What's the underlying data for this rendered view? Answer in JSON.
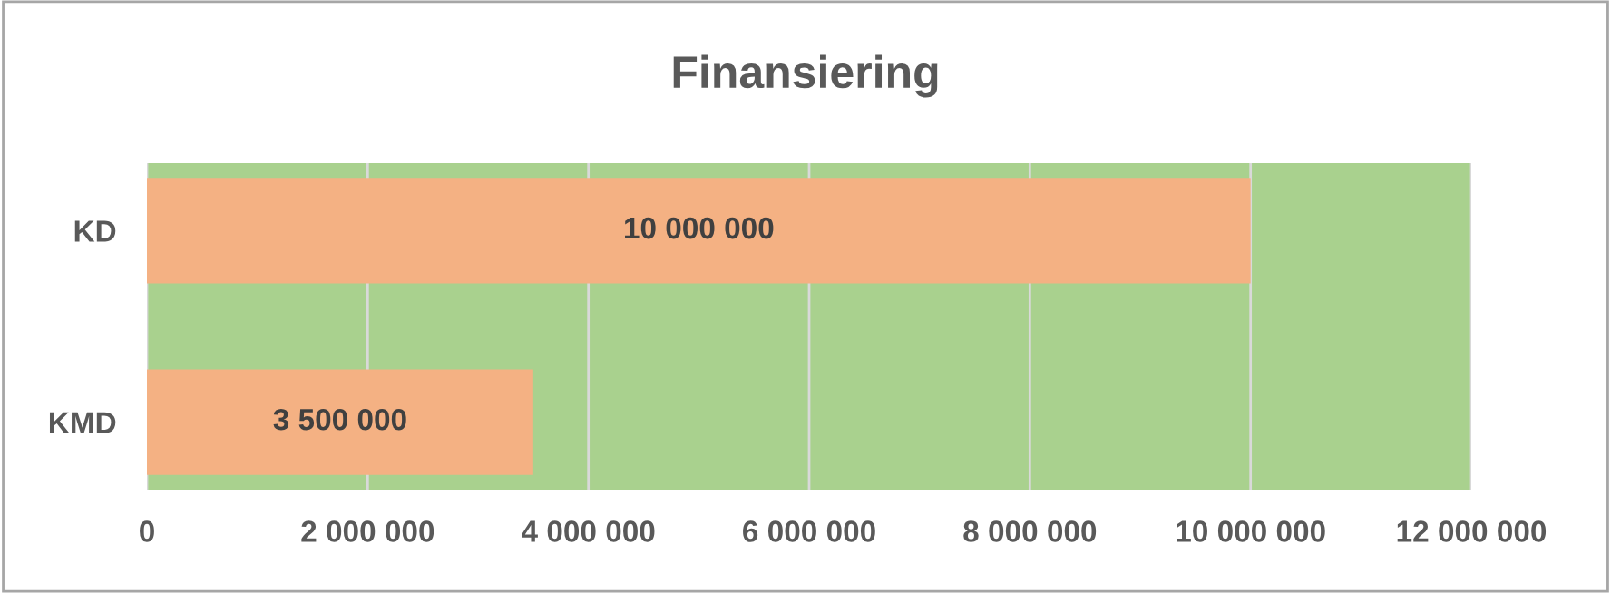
{
  "chart_data": {
    "type": "bar",
    "orientation": "horizontal",
    "title": "Finansiering",
    "categories": [
      "KD",
      "KMD"
    ],
    "series": [
      {
        "color": "#f4b183",
        "values": [
          10000000,
          3500000
        ]
      }
    ],
    "value_labels": [
      "10 000 000",
      "3 500 000"
    ],
    "xlim": [
      0,
      12000000
    ],
    "xticks": [
      0,
      {
        "value": 2000000,
        "label": "2 000 000"
      },
      {
        "value": 4000000,
        "label": "4 000 000"
      },
      {
        "value": 6000000,
        "label": "6 000 000"
      },
      {
        "value": 8000000,
        "label": "8 000 000"
      },
      {
        "value": 10000000,
        "label": "10 000 000"
      },
      {
        "value": 12000000,
        "label": "12 000 000"
      }
    ],
    "grid": "x",
    "legend": false
  }
}
